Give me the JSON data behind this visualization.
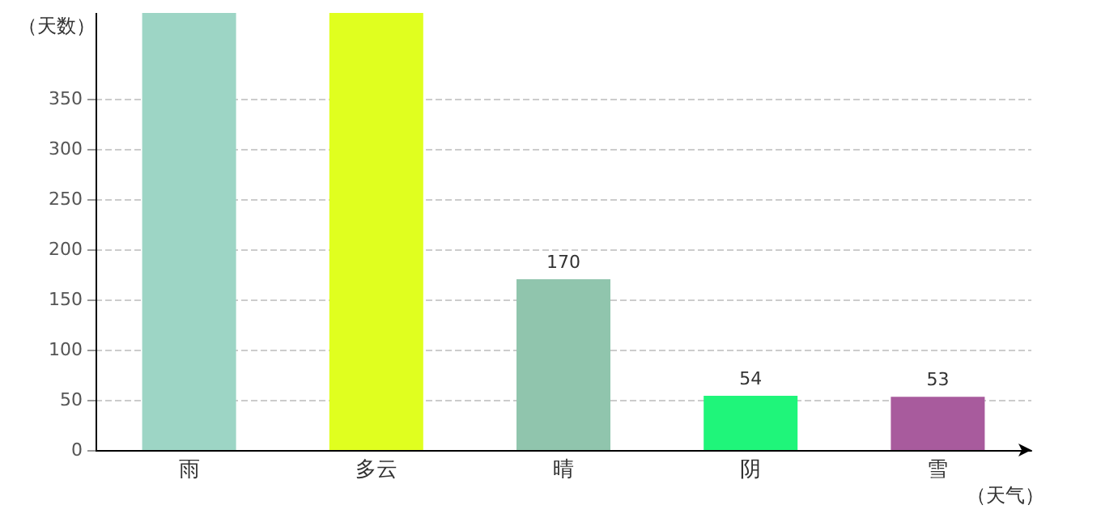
{
  "chart_data": {
    "type": "bar",
    "xlabel": "（天气）",
    "ylabel": "（天数）",
    "categories": [
      "雨",
      "多云",
      "晴",
      "阴",
      "雪"
    ],
    "values": [
      435,
      435,
      170,
      54,
      53
    ],
    "value_labels": [
      null,
      null,
      "170",
      "54",
      "53"
    ],
    "colors": [
      "#9dd5c5",
      "#e0ff1f",
      "#90c5ad",
      "#1ff57a",
      "#a85b9d"
    ],
    "ylim": [
      0,
      435
    ],
    "yticks": [
      0,
      50,
      100,
      150,
      200,
      250,
      300,
      350
    ],
    "grid": "y"
  }
}
